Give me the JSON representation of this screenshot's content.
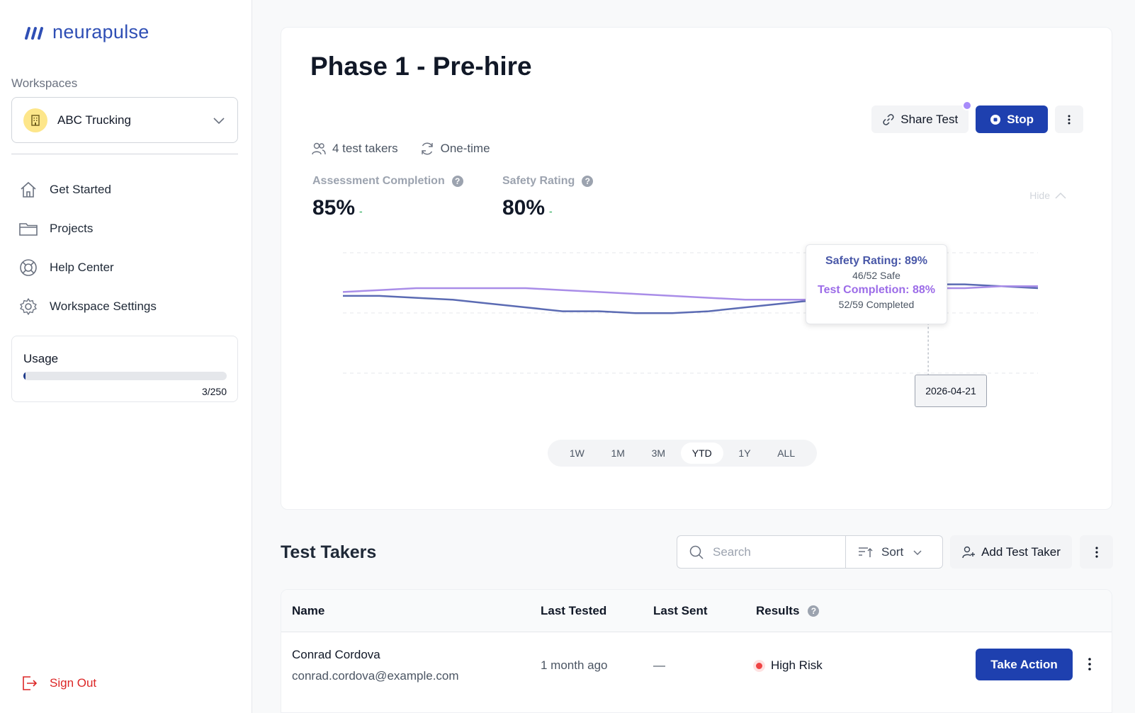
{
  "brand": {
    "name": "neurapulse",
    "color": "#2f4fb5"
  },
  "sidebar": {
    "workspaces_label": "Workspaces",
    "workspace": {
      "name": "ABC Trucking",
      "icon": "building-icon"
    },
    "nav": [
      {
        "label": "Get Started",
        "icon": "home-icon"
      },
      {
        "label": "Projects",
        "icon": "folder-icon"
      },
      {
        "label": "Help Center",
        "icon": "lifebuoy-icon"
      },
      {
        "label": "Workspace Settings",
        "icon": "gear-icon"
      }
    ],
    "usage": {
      "title": "Usage",
      "count": "3/250",
      "used": 3,
      "total": 250
    },
    "sign_out": "Sign Out"
  },
  "test": {
    "title": "Phase 1 - Pre-hire",
    "takers": "4 test takers",
    "frequency": "One-time",
    "share_label": "Share Test",
    "stop_label": "Stop",
    "hide_label": "Hide"
  },
  "metrics": [
    {
      "label": "Assessment Completion",
      "value": "85%",
      "delta": "-"
    },
    {
      "label": "Safety Rating",
      "value": "80%",
      "delta": "-"
    }
  ],
  "chart_data": {
    "type": "line",
    "series": [
      {
        "name": "Safety Rating",
        "color": "#5b6bb3",
        "values": [
          86,
          86,
          85.5,
          85,
          84,
          83,
          82,
          82,
          81.5,
          81.5,
          82,
          83,
          84,
          85,
          86.5,
          88,
          89,
          89,
          88.5,
          88
        ]
      },
      {
        "name": "Test Completion",
        "color": "#a98de8",
        "values": [
          87,
          87.5,
          88,
          88,
          88,
          88,
          87.5,
          87,
          86.5,
          86,
          85.5,
          85,
          85,
          85,
          85,
          85.5,
          88,
          88,
          88.5,
          88.5
        ]
      }
    ],
    "tooltip": {
      "safety_label": "Safety Rating: 89%",
      "safety_sub": "46/52 Safe",
      "completion_label": "Test Completion: 88%",
      "completion_sub": "52/59 Completed",
      "date": "2026-04-21"
    },
    "ylim": [
      60,
      95
    ],
    "grid": true
  },
  "ranges": [
    "1W",
    "1M",
    "3M",
    "YTD",
    "1Y",
    "ALL"
  ],
  "active_range": "YTD",
  "test_takers": {
    "title": "Test Takers",
    "search_placeholder": "Search",
    "sort_label": "Sort",
    "add_label": "Add Test Taker",
    "columns": [
      "Name",
      "Last Tested",
      "Last Sent",
      "Results"
    ],
    "rows": [
      {
        "name": "Conrad Cordova",
        "email": "conrad.cordova@example.com",
        "last_tested": "1 month ago",
        "last_sent": "—",
        "result": "High Risk",
        "action": "Take Action"
      }
    ]
  }
}
